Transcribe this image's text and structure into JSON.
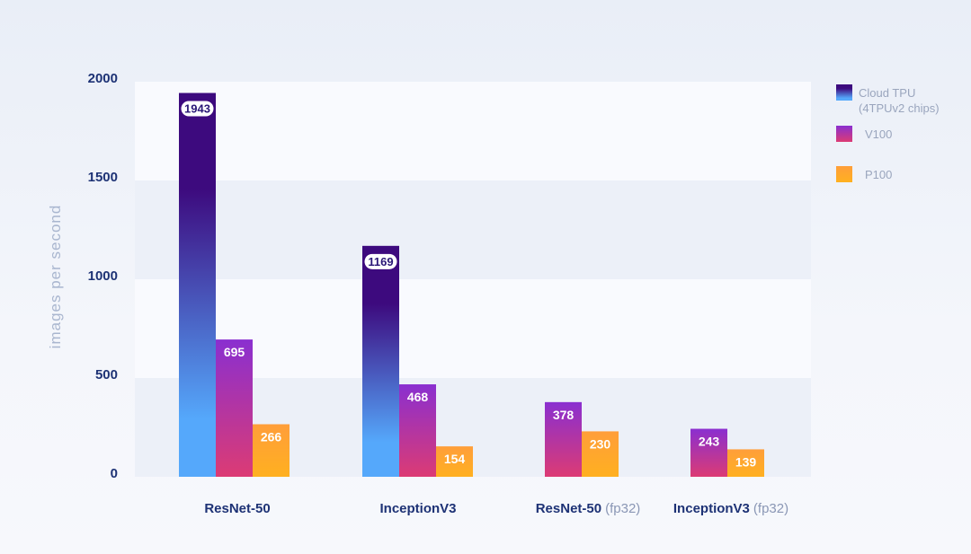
{
  "chart_data": {
    "type": "bar",
    "categories": [
      {
        "main": "ResNet-50",
        "suffix": ""
      },
      {
        "main": "InceptionV3",
        "suffix": ""
      },
      {
        "main": "ResNet-50",
        "suffix": "(fp32)"
      },
      {
        "main": "InceptionV3",
        "suffix": "(fp32)"
      }
    ],
    "series": [
      {
        "name": "Cloud TPU",
        "name_line2": "(4TPUv2 chips)",
        "values": [
          1943,
          1169,
          null,
          null
        ],
        "color_top": "#3d0a7e",
        "color_bottom": "#55a8fb",
        "label_style": "pill"
      },
      {
        "name": "V100",
        "values": [
          695,
          468,
          378,
          243
        ],
        "color_top": "#8a2fd0",
        "color_bottom": "#dc3b74",
        "label_style": "plain"
      },
      {
        "name": "P100",
        "values": [
          266,
          154,
          230,
          139
        ],
        "color_top": "#ff9e3a",
        "color_bottom": "#ffb020",
        "label_style": "plain"
      }
    ],
    "ylabel": "images per second",
    "ylim": [
      0,
      2000
    ],
    "yticks": [
      0,
      500,
      1000,
      1500,
      2000
    ],
    "legend_position": "top-right"
  }
}
